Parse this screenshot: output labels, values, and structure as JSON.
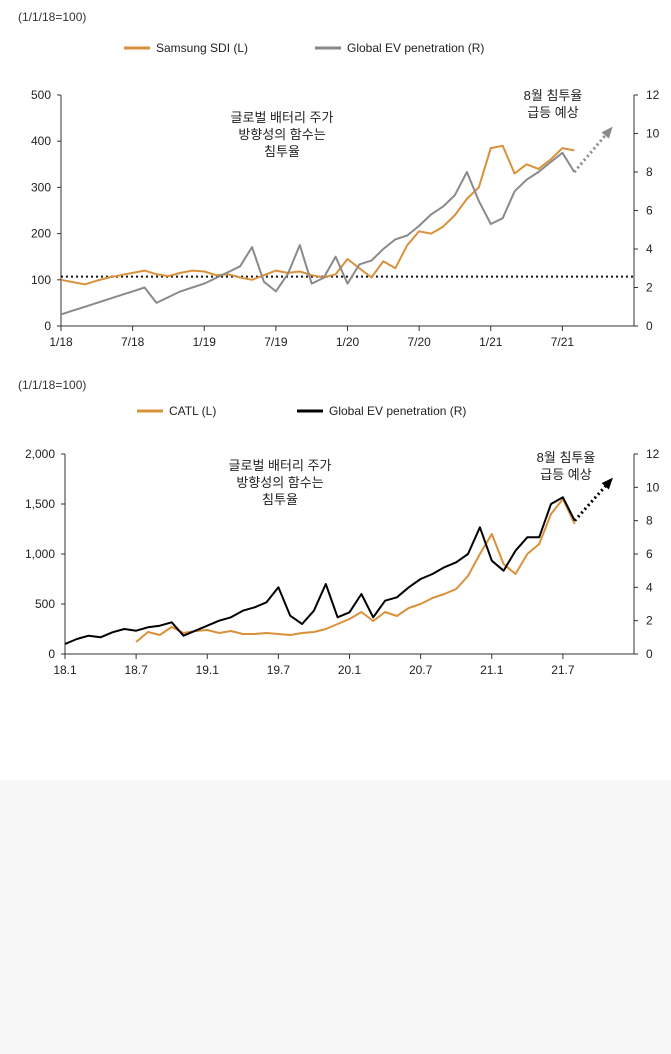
{
  "chart_data": [
    {
      "type": "line",
      "index_note": "(1/1/18=100)",
      "legend": [
        {
          "name": "Samsung SDI (L)",
          "color": "#d9913b",
          "axis": "left"
        },
        {
          "name": "Global EV penetration (R)",
          "color": "#8a8a8a",
          "axis": "right"
        }
      ],
      "x_ticks": [
        "1/18",
        "7/18",
        "1/19",
        "7/19",
        "1/20",
        "7/20",
        "1/21",
        "7/21"
      ],
      "y_left": {
        "min": 0,
        "max": 500,
        "ticks": [
          "0",
          "100",
          "200",
          "300",
          "400",
          "500"
        ]
      },
      "y_right": {
        "min": 0,
        "max": 12,
        "ticks": [
          "0",
          "2",
          "4",
          "6",
          "8",
          "10",
          "12"
        ]
      },
      "reference_line": {
        "value": 107,
        "style": "dotted"
      },
      "annotation_main": [
        "글로벌 배터리 주가",
        "방향성의 함수는",
        "침투율"
      ],
      "annotation_forecast": [
        "8월 침투율",
        "급등 예상"
      ],
      "series": [
        {
          "name": "Samsung SDI (L)",
          "axis": "left",
          "x": [
            0,
            1,
            2,
            3,
            4,
            5,
            6,
            7,
            8,
            9,
            10,
            11,
            12,
            13,
            14,
            15,
            16,
            17,
            18,
            19,
            20,
            21,
            22,
            23,
            24,
            25,
            26,
            27,
            28,
            29,
            30,
            31,
            32,
            33,
            34,
            35,
            36,
            37,
            38,
            39,
            40,
            41,
            42,
            43
          ],
          "values": [
            100,
            95,
            90,
            98,
            105,
            110,
            115,
            120,
            112,
            108,
            115,
            120,
            118,
            110,
            112,
            105,
            100,
            110,
            120,
            115,
            118,
            110,
            105,
            112,
            145,
            125,
            105,
            140,
            125,
            175,
            205,
            200,
            215,
            240,
            275,
            300,
            385,
            390,
            330,
            350,
            340,
            360,
            385,
            380
          ]
        },
        {
          "name": "Global EV penetration (R)",
          "axis": "right",
          "x": [
            0,
            1,
            2,
            3,
            4,
            5,
            6,
            7,
            8,
            9,
            10,
            11,
            12,
            13,
            14,
            15,
            16,
            17,
            18,
            19,
            20,
            21,
            22,
            23,
            24,
            25,
            26,
            27,
            28,
            29,
            30,
            31,
            32,
            33,
            34,
            35,
            36,
            37,
            38,
            39,
            40,
            41,
            42,
            43
          ],
          "values": [
            0.6,
            0.8,
            1.0,
            1.2,
            1.4,
            1.6,
            1.8,
            2.0,
            1.2,
            1.5,
            1.8,
            2.0,
            2.2,
            2.5,
            2.8,
            3.1,
            4.1,
            2.3,
            1.8,
            2.7,
            4.2,
            2.2,
            2.5,
            3.6,
            2.2,
            3.2,
            3.4,
            4.0,
            4.5,
            4.7,
            5.2,
            5.8,
            6.2,
            6.8,
            8.0,
            6.5,
            5.3,
            5.6,
            7.0,
            7.6,
            8.0,
            8.5,
            9.0,
            8.0
          ]
        },
        {
          "name": "forecast",
          "axis": "right",
          "x": [
            43,
            46
          ],
          "values": [
            8.0,
            10.2
          ]
        }
      ]
    },
    {
      "type": "line",
      "index_note": "(1/1/18=100)",
      "legend": [
        {
          "name": "CATL (L)",
          "color": "#d9913b",
          "axis": "left"
        },
        {
          "name": "Global EV penetration (R)",
          "color": "#000000",
          "axis": "right"
        }
      ],
      "x_ticks": [
        "18.1",
        "18.7",
        "19.1",
        "19.7",
        "20.1",
        "20.7",
        "21.1",
        "21.7"
      ],
      "y_left": {
        "min": 0,
        "max": 2000,
        "ticks": [
          "0",
          "500",
          "1,000",
          "1,500",
          "2,000"
        ]
      },
      "y_right": {
        "min": 0,
        "max": 12,
        "ticks": [
          "0",
          "2",
          "4",
          "6",
          "8",
          "10",
          "12"
        ]
      },
      "annotation_main": [
        "글로벌 배터리 주가",
        "방향성의 함수는",
        "침투율"
      ],
      "annotation_forecast": [
        "8월 침투율",
        "급등 예상"
      ],
      "series": [
        {
          "name": "CATL (L)",
          "axis": "left",
          "x": [
            6,
            7,
            8,
            9,
            10,
            11,
            12,
            13,
            14,
            15,
            16,
            17,
            18,
            19,
            20,
            21,
            22,
            23,
            24,
            25,
            26,
            27,
            28,
            29,
            30,
            31,
            32,
            33,
            34,
            35,
            36,
            37,
            38,
            39,
            40,
            41,
            42,
            43
          ],
          "values": [
            120,
            220,
            190,
            270,
            210,
            230,
            240,
            210,
            230,
            200,
            200,
            210,
            200,
            190,
            210,
            220,
            250,
            300,
            350,
            420,
            330,
            420,
            380,
            460,
            500,
            560,
            600,
            650,
            780,
            1000,
            1200,
            900,
            800,
            1000,
            1100,
            1400,
            1550,
            1300
          ]
        },
        {
          "name": "Global EV penetration (R)",
          "axis": "right",
          "x": [
            0,
            1,
            2,
            3,
            4,
            5,
            6,
            7,
            8,
            9,
            10,
            11,
            12,
            13,
            14,
            15,
            16,
            17,
            18,
            19,
            20,
            21,
            22,
            23,
            24,
            25,
            26,
            27,
            28,
            29,
            30,
            31,
            32,
            33,
            34,
            35,
            36,
            37,
            38,
            39,
            40,
            41,
            42,
            43
          ],
          "values": [
            0.6,
            0.9,
            1.1,
            1.0,
            1.3,
            1.5,
            1.4,
            1.6,
            1.7,
            1.9,
            1.1,
            1.4,
            1.7,
            2.0,
            2.2,
            2.6,
            2.8,
            3.1,
            4.0,
            2.3,
            1.8,
            2.6,
            4.2,
            2.2,
            2.5,
            3.6,
            2.2,
            3.2,
            3.4,
            4.0,
            4.5,
            4.8,
            5.2,
            5.5,
            6.0,
            7.6,
            5.6,
            5.0,
            6.2,
            7.0,
            7.0,
            9.0,
            9.4,
            8.0
          ]
        },
        {
          "name": "forecast",
          "axis": "right",
          "x": [
            43,
            46
          ],
          "values": [
            8.0,
            10.4
          ]
        }
      ]
    }
  ]
}
